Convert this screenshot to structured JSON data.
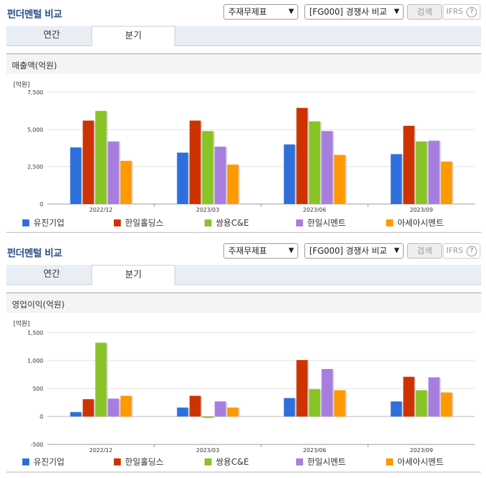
{
  "panels": [
    {
      "title": "펀더멘털 비교",
      "statement_select": "주재무제표",
      "compare_select": "[FG000] 경쟁사 비교",
      "search_label": "검색",
      "ifrs_label": "IFRS",
      "help_icon": "?",
      "tabs": [
        "연간",
        "분기"
      ],
      "active_tab": 1,
      "chart_title": "매출액(억원)",
      "unit_label": "[억원]"
    },
    {
      "title": "펀더멘털 비교",
      "statement_select": "주재무제표",
      "compare_select": "[FG000] 경쟁사 비교",
      "search_label": "검색",
      "ifrs_label": "IFRS",
      "help_icon": "?",
      "tabs": [
        "연간",
        "분기"
      ],
      "active_tab": 1,
      "chart_title": "영업이익(억원)",
      "unit_label": "[억원]"
    }
  ],
  "colors": {
    "유진기업": "#2f6fdc",
    "한일홀딩스": "#cc3300",
    "쌍용C&E": "#88c425",
    "한일시멘트": "#a77ee0",
    "아세아시멘트": "#ff9900"
  },
  "chart_data": [
    {
      "type": "bar",
      "title": "매출액(억원)",
      "ylabel": "[억원]",
      "categories": [
        "2022/12",
        "2023/03",
        "2023/06",
        "2023/09"
      ],
      "ylim": [
        0,
        7500
      ],
      "yticks": [
        0,
        2500,
        5000,
        7500
      ],
      "ytick_labels": [
        "0",
        "2,500",
        "5,000",
        "7,500"
      ],
      "series": [
        {
          "name": "유진기업",
          "values": [
            3800,
            3450,
            4000,
            3350
          ]
        },
        {
          "name": "한일홀딩스",
          "values": [
            5600,
            5600,
            6450,
            5250
          ]
        },
        {
          "name": "쌍용C&E",
          "values": [
            6250,
            4900,
            5550,
            4200
          ]
        },
        {
          "name": "한일시멘트",
          "values": [
            4200,
            3850,
            4900,
            4250
          ]
        },
        {
          "name": "아세아시멘트",
          "values": [
            2900,
            2650,
            3300,
            2850
          ]
        }
      ],
      "legend": "bottom"
    },
    {
      "type": "bar",
      "title": "영업이익(억원)",
      "ylabel": "[억원]",
      "categories": [
        "2022/12",
        "2023/03",
        "2023/06",
        "2023/09"
      ],
      "ylim": [
        -500,
        1500
      ],
      "yticks": [
        -500,
        0,
        500,
        1000,
        1500
      ],
      "ytick_labels": [
        "-500",
        "0",
        "500",
        "1,000",
        "1,500"
      ],
      "series": [
        {
          "name": "유진기업",
          "values": [
            80,
            160,
            330,
            270
          ]
        },
        {
          "name": "한일홀딩스",
          "values": [
            310,
            370,
            1010,
            710
          ]
        },
        {
          "name": "쌍용C&E",
          "values": [
            1320,
            -20,
            490,
            470
          ]
        },
        {
          "name": "한일시멘트",
          "values": [
            320,
            270,
            850,
            700
          ]
        },
        {
          "name": "아세아시멘트",
          "values": [
            370,
            160,
            470,
            430
          ]
        }
      ],
      "legend": "bottom"
    }
  ]
}
